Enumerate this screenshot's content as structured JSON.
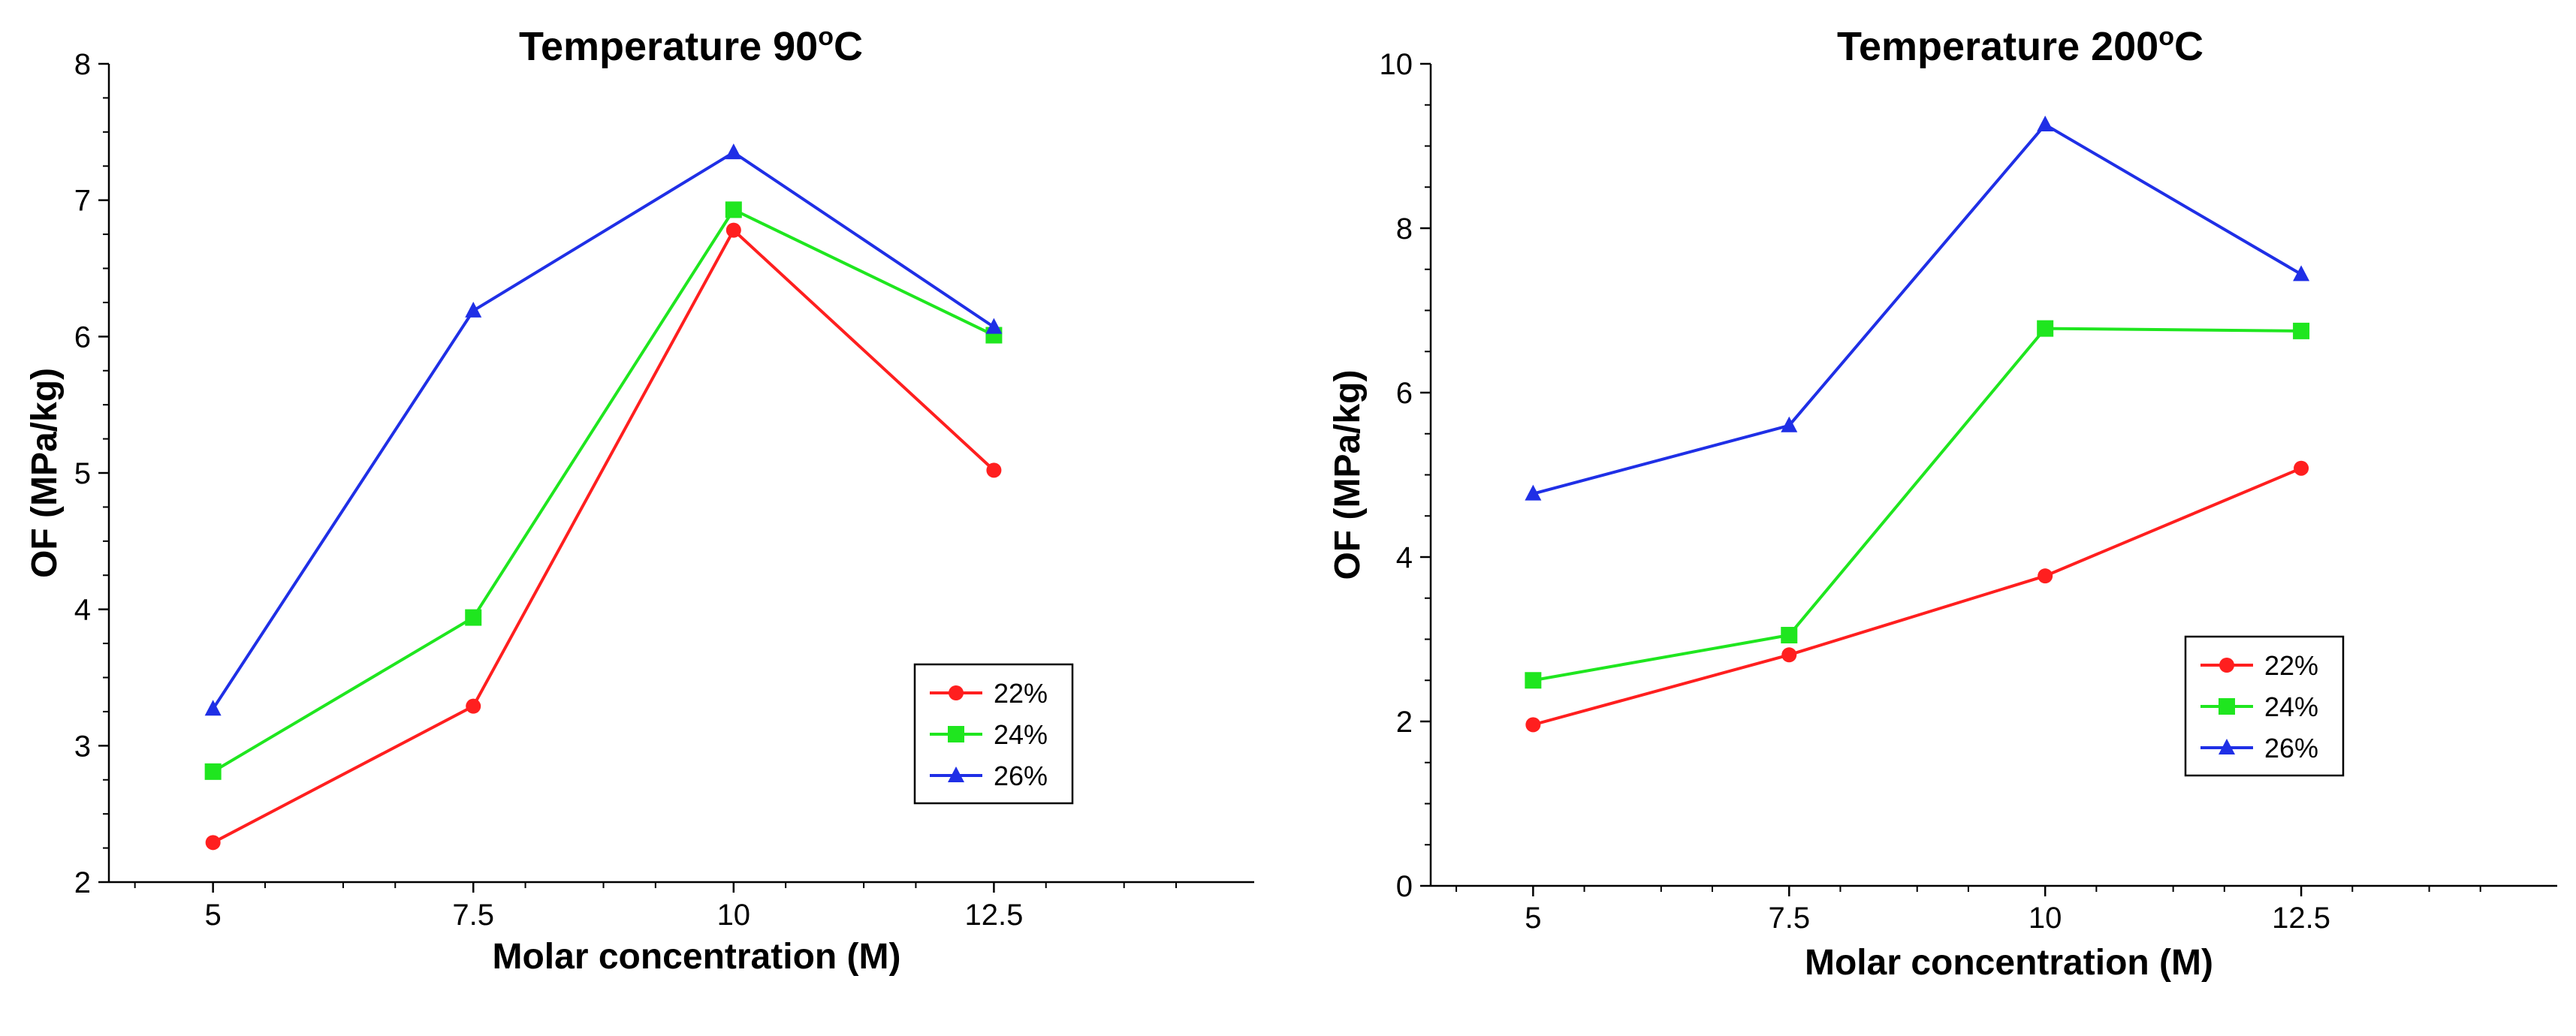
{
  "chart_data": [
    {
      "type": "line",
      "title_main": "Temperature 90",
      "title_sup": "o",
      "title_end": "C",
      "xlabel": "Molar concentration (M)",
      "ylabel": "OF  (MPa/kg)",
      "x": [
        5,
        7.5,
        10,
        12.5
      ],
      "x_tick_labels": [
        "5",
        "7.5",
        "10",
        "12.5"
      ],
      "y_ticks": [
        2,
        3,
        4,
        5,
        6,
        7,
        8
      ],
      "y_tick_labels": [
        "2",
        "3",
        "4",
        "5",
        "6",
        "7",
        "8"
      ],
      "ylim": [
        2,
        8
      ],
      "legend_position": "lower-right",
      "series": [
        {
          "name": "22%",
          "color": "#ff1f1f",
          "marker": "circle",
          "values": [
            2.29,
            3.29,
            6.78,
            5.02
          ]
        },
        {
          "name": "24%",
          "color": "#1fe61f",
          "marker": "square",
          "values": [
            2.81,
            3.94,
            6.93,
            6.01
          ]
        },
        {
          "name": "26%",
          "color": "#1f2fe6",
          "marker": "triangle",
          "values": [
            3.27,
            6.19,
            7.35,
            6.07
          ]
        }
      ]
    },
    {
      "type": "line",
      "title_main": "Temperature 200",
      "title_sup": "o",
      "title_end": "C",
      "xlabel": "Molar concentration (M)",
      "ylabel": "OF (MPa/kg)",
      "x": [
        5,
        7.5,
        10,
        12.5
      ],
      "x_tick_labels": [
        "5",
        "7.5",
        "10",
        "12.5"
      ],
      "y_ticks": [
        0,
        2,
        4,
        6,
        8,
        10
      ],
      "y_tick_labels": [
        "0",
        "2",
        "4",
        "6",
        "8",
        "10"
      ],
      "ylim": [
        0,
        10
      ],
      "legend_position": "center-right",
      "series": [
        {
          "name": "22%",
          "color": "#ff1f1f",
          "marker": "circle",
          "values": [
            1.96,
            2.81,
            3.77,
            5.08
          ]
        },
        {
          "name": "24%",
          "color": "#1fe61f",
          "marker": "square",
          "values": [
            2.5,
            3.05,
            6.78,
            6.75
          ]
        },
        {
          "name": "26%",
          "color": "#1f2fe6",
          "marker": "triangle",
          "values": [
            4.77,
            5.6,
            9.26,
            7.44
          ]
        }
      ]
    }
  ]
}
